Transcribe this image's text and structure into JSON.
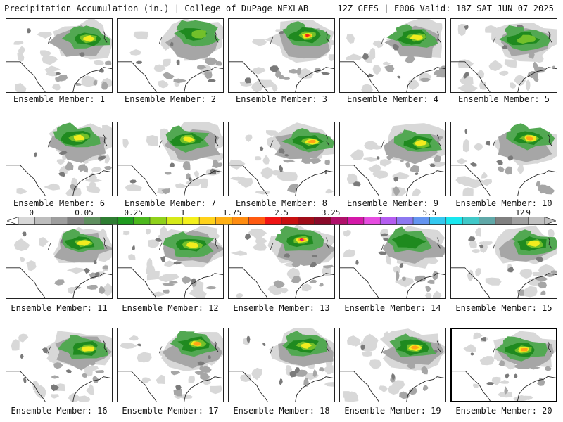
{
  "header": {
    "title": "Precipitation Accumulation (in.) | College of DuPage NEXLAB",
    "run_info": "12Z GEFS | F006 Valid: 18Z SAT JUN 07 2025"
  },
  "colorbar": {
    "tick_labels": [
      "0",
      "0.05",
      "0.25",
      "1",
      "1.75",
      "2.5",
      "3.25",
      "4",
      "5.5",
      "7",
      "9",
      "12"
    ],
    "colors": [
      "#d8d8d8",
      "#bdbdbd",
      "#9e9e9e",
      "#7f7f7f",
      "#5f8f5f",
      "#2e7d32",
      "#1f9a1f",
      "#4cb81d",
      "#8fd11a",
      "#d6ea18",
      "#f4f01c",
      "#ffd21a",
      "#ffb014",
      "#ff8c10",
      "#ff5a10",
      "#f01414",
      "#c81010",
      "#a00c18",
      "#8a0a2a",
      "#b0106a",
      "#d418a8",
      "#e64ce0",
      "#b45cf0",
      "#8c78f0",
      "#6494f0",
      "#34c8f0",
      "#18e8f0",
      "#40c8c8",
      "#60a8a8",
      "#808080",
      "#a0a0a0",
      "#c0c0c0"
    ],
    "color_scale": "arrows on both ends (min/max extensions)"
  },
  "map_colors": {
    "light_gray": "#d8d8d8",
    "mid_gray": "#a6a6a6",
    "dark_gray": "#7a7a7a",
    "light_green": "#52a852",
    "dark_green": "#1f8a1f",
    "bright_green": "#72c02a",
    "yellow": "#f2ec1e",
    "orange": "#ffa516",
    "red": "#f02a14",
    "magenta": "#d4189c",
    "border": "#222222"
  },
  "members": [
    {
      "label": "Ensemble Member: 1",
      "peak": "yellow"
    },
    {
      "label": "Ensemble Member: 2",
      "peak": "bright_green"
    },
    {
      "label": "Ensemble Member: 3",
      "peak": "red"
    },
    {
      "label": "Ensemble Member: 4",
      "peak": "yellow"
    },
    {
      "label": "Ensemble Member: 5",
      "peak": "bright_green"
    },
    {
      "label": "Ensemble Member: 6",
      "peak": "yellow"
    },
    {
      "label": "Ensemble Member: 7",
      "peak": "yellow"
    },
    {
      "label": "Ensemble Member: 8",
      "peak": "orange"
    },
    {
      "label": "Ensemble Member: 9",
      "peak": "yellow"
    },
    {
      "label": "Ensemble Member: 10",
      "peak": "orange"
    },
    {
      "label": "Ensemble Member: 11",
      "peak": "yellow"
    },
    {
      "label": "Ensemble Member: 12",
      "peak": "yellow"
    },
    {
      "label": "Ensemble Member: 13",
      "peak": "magenta"
    },
    {
      "label": "Ensemble Member: 14",
      "peak": "dark_green"
    },
    {
      "label": "Ensemble Member: 15",
      "peak": "yellow"
    },
    {
      "label": "Ensemble Member: 16",
      "peak": "yellow"
    },
    {
      "label": "Ensemble Member: 17",
      "peak": "orange"
    },
    {
      "label": "Ensemble Member: 18",
      "peak": "yellow"
    },
    {
      "label": "Ensemble Member: 19",
      "peak": "orange"
    },
    {
      "label": "Ensemble Member: 20",
      "peak": "orange",
      "selected": true
    }
  ]
}
